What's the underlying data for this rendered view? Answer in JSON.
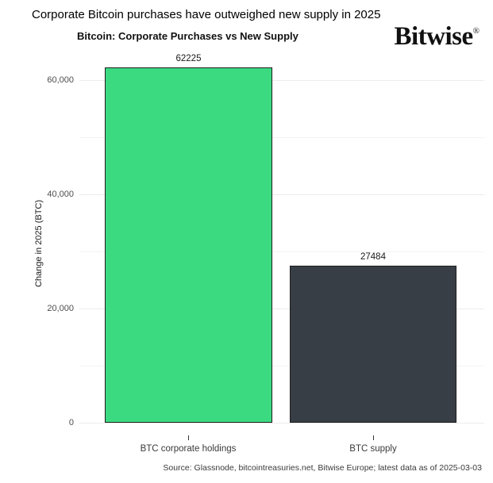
{
  "header": {
    "title": "Corporate Bitcoin purchases have outweighed new supply in 2025",
    "logo_text": "Bitwise",
    "logo_reg": "®"
  },
  "chart_data": {
    "type": "bar",
    "title": "Bitcoin: Corporate Purchases vs New Supply",
    "categories": [
      "BTC corporate holdings",
      "BTC supply"
    ],
    "values": [
      62225,
      27484
    ],
    "colors": [
      "#3bda81",
      "#383e45"
    ],
    "bar_border_color": "#1f1f1f",
    "ylabel": "Change in 2025 (BTC)",
    "xlabel": "",
    "ylim": [
      0,
      65000
    ],
    "yticks": [
      {
        "value": 0,
        "label": "0"
      },
      {
        "value": 20000,
        "label": "20,000"
      },
      {
        "value": 40000,
        "label": "40,000"
      },
      {
        "value": 60000,
        "label": "60,000"
      }
    ],
    "grid": "horizontal, light gray, every 10000 (minor) / 20000 (major)",
    "legend": "none",
    "source": "Source: Glassnode, bitcointreasuries.net, Bitwise Europe; latest data as of 2025-03-03"
  }
}
